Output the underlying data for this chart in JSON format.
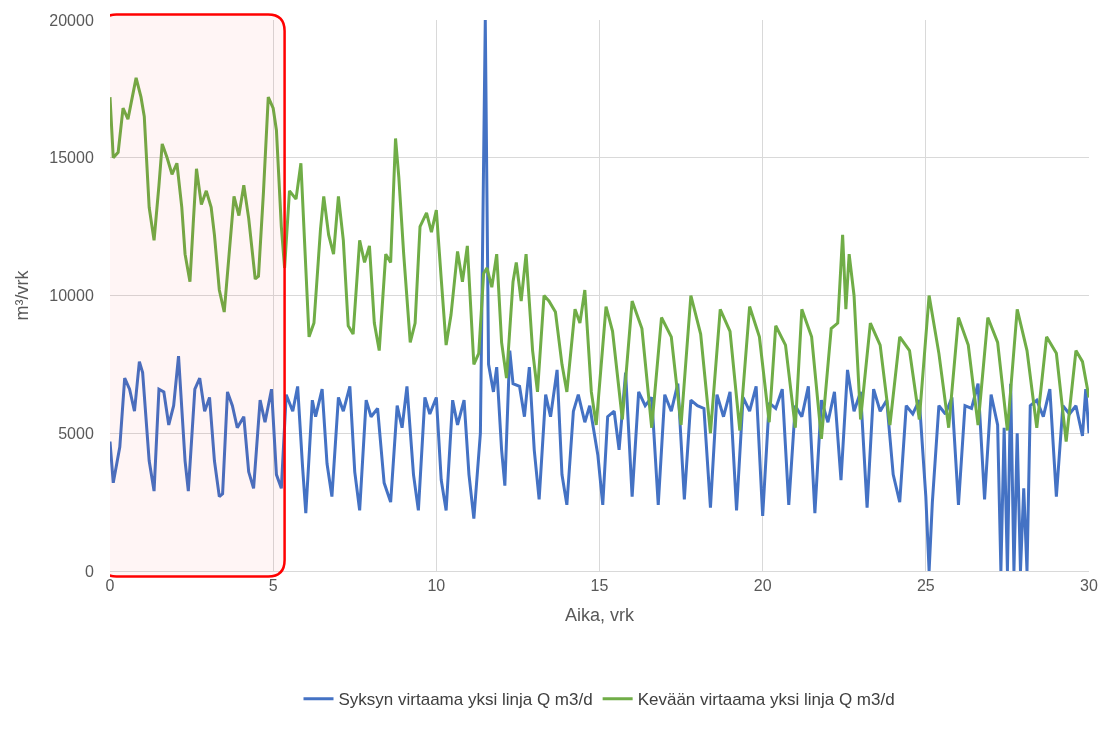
{
  "chart_data": {
    "type": "line",
    "xlabel": "Aika, vrk",
    "ylabel": "m³/vrk",
    "xlim": [
      0,
      30
    ],
    "xticks": [
      0,
      5,
      10,
      15,
      20,
      25,
      30
    ],
    "ylim": [
      0,
      20000
    ],
    "yticks": [
      0,
      5000,
      10000,
      15000,
      20000
    ],
    "grid": true,
    "legend": "bottom",
    "marker": "none",
    "line_style": "solid",
    "bands": [
      {
        "axis": "x",
        "from": -0.3,
        "to": 5.35,
        "color": "#ff0000"
      }
    ],
    "series": [
      {
        "name": "Syksyn virtaama yksi linja Q m3/d",
        "color": "#4472c4",
        "x": [
          0,
          0.1,
          0.3,
          0.45,
          0.6,
          0.75,
          0.9,
          1.0,
          1.2,
          1.35,
          1.5,
          1.65,
          1.8,
          1.95,
          2.1,
          2.3,
          2.4,
          2.6,
          2.75,
          2.9,
          3.05,
          3.2,
          3.35,
          3.45,
          3.6,
          3.75,
          3.9,
          4.1,
          4.25,
          4.4,
          4.6,
          4.75,
          4.95,
          5.1,
          5.25,
          5.4,
          5.6,
          5.75,
          5.9,
          6.0,
          6.2,
          6.3,
          6.5,
          6.65,
          6.8,
          7.0,
          7.15,
          7.35,
          7.5,
          7.65,
          7.85,
          8.0,
          8.2,
          8.4,
          8.6,
          8.8,
          8.95,
          9.1,
          9.3,
          9.45,
          9.65,
          9.8,
          10.0,
          10.15,
          10.3,
          10.5,
          10.65,
          10.85,
          11.0,
          11.15,
          11.35,
          11.5,
          11.6,
          11.75,
          11.85,
          12.0,
          12.1,
          12.25,
          12.35,
          12.55,
          12.7,
          12.85,
          13.0,
          13.15,
          13.35,
          13.5,
          13.7,
          13.85,
          14.0,
          14.2,
          14.35,
          14.55,
          14.7,
          14.95,
          15.1,
          15.25,
          15.45,
          15.6,
          15.8,
          16.0,
          16.2,
          16.4,
          16.6,
          16.8,
          17.0,
          17.2,
          17.4,
          17.6,
          17.8,
          18.0,
          18.2,
          18.4,
          18.6,
          18.8,
          19.0,
          19.2,
          19.4,
          19.6,
          19.8,
          20.0,
          20.2,
          20.4,
          20.6,
          20.8,
          21.0,
          21.2,
          21.4,
          21.6,
          21.8,
          22.0,
          22.2,
          22.4,
          22.6,
          22.8,
          23.0,
          23.2,
          23.4,
          23.6,
          23.8,
          24.0,
          24.2,
          24.4,
          24.6,
          24.8,
          25.0,
          25.1,
          25.2,
          25.4,
          25.6,
          25.8,
          26.0,
          26.2,
          26.4,
          26.6,
          26.8,
          27.0,
          27.2,
          27.3,
          27.4,
          27.5,
          27.6,
          27.7,
          27.8,
          27.9,
          28.0,
          28.1,
          28.2,
          28.4,
          28.6,
          28.8,
          29.0,
          29.2,
          29.4,
          29.6,
          29.8,
          29.9,
          30
        ],
        "values": [
          4700,
          3200,
          4500,
          7000,
          6600,
          5800,
          7600,
          7200,
          4000,
          2900,
          6600,
          6500,
          5300,
          6000,
          7800,
          4000,
          2900,
          6600,
          7000,
          5800,
          6300,
          4000,
          2700,
          2800,
          6500,
          6000,
          5200,
          5600,
          3600,
          3000,
          6200,
          5400,
          6600,
          3500,
          3000,
          6400,
          5800,
          6700,
          3800,
          2100,
          6200,
          5600,
          6600,
          3900,
          2700,
          6300,
          5800,
          6700,
          3600,
          2200,
          6200,
          5600,
          5900,
          3200,
          2500,
          6000,
          5200,
          6700,
          3500,
          2200,
          6300,
          5700,
          6300,
          3300,
          2200,
          6200,
          5300,
          6200,
          3500,
          1900,
          5000,
          20000,
          7500,
          6500,
          7400,
          4400,
          3100,
          8000,
          6800,
          6700,
          5600,
          7400,
          4400,
          2600,
          6400,
          5600,
          7300,
          3500,
          2400,
          5800,
          6400,
          5400,
          6000,
          4200,
          2400,
          5600,
          5800,
          4400,
          7200,
          2700,
          6500,
          6000,
          6300,
          2400,
          6400,
          5800,
          6800,
          2600,
          6200,
          6000,
          5900,
          2300,
          6400,
          5600,
          6500,
          2200,
          6300,
          5800,
          6700,
          2000,
          6100,
          5900,
          6600,
          2400,
          6000,
          5600,
          6700,
          2100,
          6200,
          5400,
          6500,
          3300,
          7300,
          5800,
          6500,
          2300,
          6600,
          5800,
          6200,
          3500,
          2500,
          6000,
          5700,
          6200,
          2700,
          0,
          2500,
          6000,
          5700,
          6300,
          2400,
          6000,
          5900,
          6800,
          2600,
          6400,
          5300,
          0,
          5200,
          0,
          6800,
          0,
          5000,
          0,
          3000,
          0,
          6000,
          6200,
          5600,
          6600,
          2700,
          6000,
          5700,
          6000,
          4900,
          6600,
          5000
        ]
      },
      {
        "name": "Kevään virtaama yksi linja Q m3/d",
        "color": "#70ad47",
        "x": [
          0,
          0.1,
          0.25,
          0.4,
          0.55,
          0.65,
          0.8,
          0.95,
          1.05,
          1.2,
          1.35,
          1.5,
          1.6,
          1.75,
          1.9,
          2.05,
          2.2,
          2.3,
          2.45,
          2.55,
          2.65,
          2.8,
          2.95,
          3.1,
          3.2,
          3.35,
          3.5,
          3.65,
          3.8,
          3.95,
          4.1,
          4.25,
          4.45,
          4.55,
          4.7,
          4.85,
          5.0,
          5.1,
          5.25,
          5.35,
          5.5,
          5.7,
          5.85,
          6.0,
          6.1,
          6.25,
          6.45,
          6.55,
          6.7,
          6.85,
          7.0,
          7.15,
          7.3,
          7.45,
          7.65,
          7.8,
          7.95,
          8.1,
          8.25,
          8.45,
          8.6,
          8.75,
          8.85,
          9.0,
          9.2,
          9.35,
          9.5,
          9.7,
          9.85,
          10.0,
          10.15,
          10.3,
          10.45,
          10.65,
          10.8,
          10.95,
          11.15,
          11.3,
          11.45,
          11.55,
          11.7,
          11.85,
          12.0,
          12.15,
          12.35,
          12.45,
          12.6,
          12.75,
          12.95,
          13.1,
          13.3,
          13.45,
          13.65,
          13.85,
          14.0,
          14.25,
          14.4,
          14.55,
          14.75,
          14.9,
          15.2,
          15.4,
          15.7,
          16.0,
          16.3,
          16.6,
          16.9,
          17.2,
          17.5,
          17.8,
          18.1,
          18.4,
          18.7,
          19.0,
          19.3,
          19.6,
          19.9,
          20.2,
          20.4,
          20.7,
          21.0,
          21.2,
          21.5,
          21.8,
          22.1,
          22.3,
          22.45,
          22.55,
          22.65,
          22.8,
          23.0,
          23.3,
          23.6,
          23.9,
          24.2,
          24.5,
          24.8,
          25.1,
          25.4,
          25.7,
          26.0,
          26.3,
          26.6,
          26.9,
          27.2,
          27.5,
          27.8,
          28.1,
          28.4,
          28.7,
          29.0,
          29.3,
          29.6,
          29.8,
          30
        ],
        "values": [
          17200,
          15000,
          15200,
          16800,
          16400,
          17000,
          17900,
          17200,
          16500,
          13200,
          12000,
          14000,
          15500,
          15000,
          14400,
          14800,
          13200,
          11500,
          10500,
          12600,
          14600,
          13300,
          13800,
          13200,
          12200,
          10200,
          9400,
          11500,
          13600,
          12900,
          14000,
          12800,
          10600,
          10700,
          13700,
          17200,
          16800,
          16000,
          12500,
          11000,
          13800,
          13500,
          14800,
          11000,
          8500,
          9000,
          12400,
          13600,
          12200,
          11500,
          13600,
          12000,
          8900,
          8600,
          12000,
          11200,
          11800,
          9000,
          8000,
          11500,
          11200,
          15700,
          14300,
          11500,
          8300,
          9000,
          12500,
          13000,
          12300,
          13100,
          10600,
          8200,
          9300,
          11600,
          10500,
          11800,
          7500,
          7900,
          10800,
          11000,
          10300,
          11500,
          8300,
          7000,
          10500,
          11200,
          9800,
          11500,
          8000,
          6500,
          10000,
          9800,
          9400,
          7500,
          6500,
          9500,
          9000,
          10200,
          6500,
          5300,
          9600,
          8700,
          5500,
          9800,
          8800,
          5200,
          9200,
          8500,
          5300,
          10000,
          8600,
          5000,
          9500,
          8700,
          5100,
          9600,
          8500,
          5400,
          8900,
          8200,
          5200,
          9500,
          8500,
          4800,
          8800,
          9000,
          12200,
          9500,
          11500,
          10000,
          5500,
          9000,
          8200,
          5300,
          8500,
          8000,
          5500,
          10000,
          7900,
          5200,
          9200,
          8200,
          5300,
          9200,
          8300,
          5100,
          9500,
          8000,
          5200,
          8500,
          7900,
          4700,
          8000,
          7600,
          6300
        ]
      }
    ]
  }
}
